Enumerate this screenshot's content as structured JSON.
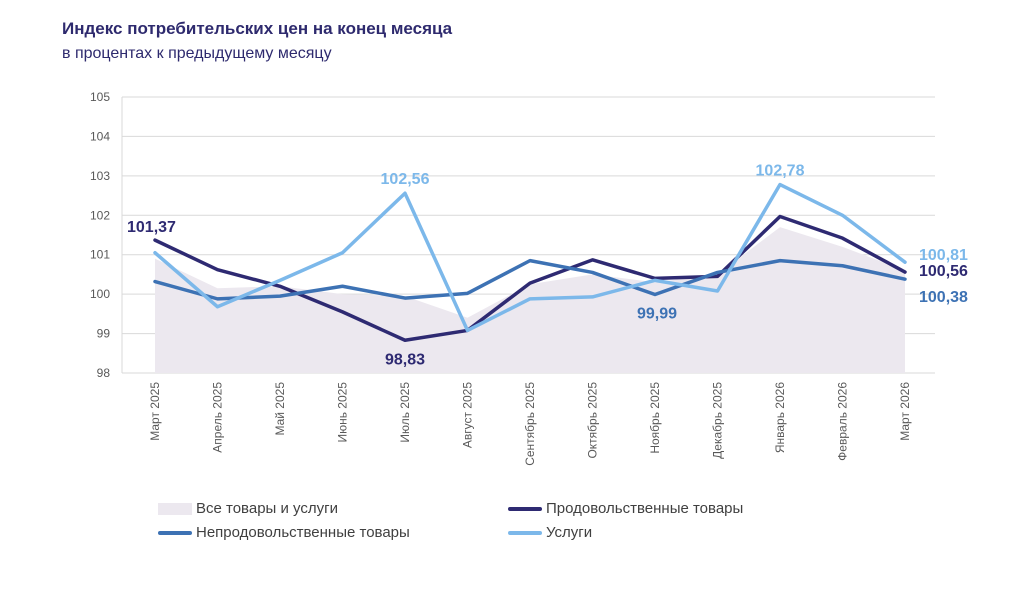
{
  "title": "Индекс потребительских цен на конец месяца",
  "subtitle": "в процентах к предыдущему месяцу",
  "chart_data": {
    "type": "line",
    "categories": [
      "Март 2025",
      "Апрель 2025",
      "Май 2025",
      "Июнь 2025",
      "Июль 2025",
      "Август 2025",
      "Сентябрь 2025",
      "Октябрь 2025",
      "Ноябрь 2025",
      "Декабрь 2025",
      "Январь 2026",
      "Февраль 2026",
      "Март 2026"
    ],
    "ylim": [
      98,
      105
    ],
    "yticks": [
      "98",
      "99",
      "100",
      "101",
      "102",
      "103",
      "104",
      "105"
    ],
    "grid": true,
    "legend_position": "bottom",
    "series": [
      {
        "name": "Все товары и услуги",
        "kind": "area",
        "color": "#ece8ef",
        "values": [
          100.9,
          100.15,
          100.2,
          100.0,
          99.95,
          99.4,
          100.25,
          100.5,
          100.3,
          100.5,
          101.7,
          101.2,
          100.6
        ]
      },
      {
        "name": "Продовольственные товары",
        "kind": "line",
        "color": "#2e2a72",
        "values": [
          101.37,
          100.62,
          100.2,
          99.55,
          98.83,
          99.08,
          100.28,
          100.87,
          100.4,
          100.45,
          101.97,
          101.42,
          100.56
        ]
      },
      {
        "name": "Непродовольственные товары",
        "kind": "line",
        "color": "#3d72b4",
        "values": [
          100.32,
          99.88,
          99.95,
          100.2,
          99.9,
          100.02,
          100.85,
          100.55,
          99.99,
          100.55,
          100.85,
          100.72,
          100.38
        ]
      },
      {
        "name": "Услуги",
        "kind": "line",
        "color": "#7cb8ea",
        "values": [
          101.05,
          99.68,
          100.35,
          101.05,
          102.56,
          99.08,
          99.88,
          99.93,
          100.35,
          100.08,
          102.78,
          102.0,
          100.81
        ]
      }
    ],
    "annotations": [
      {
        "text": "101,37",
        "series": 1,
        "index": 0
      },
      {
        "text": "98,83",
        "series": 1,
        "index": 4
      },
      {
        "text": "102,56",
        "series": 3,
        "index": 4
      },
      {
        "text": "99,99",
        "series": 2,
        "index": 8
      },
      {
        "text": "102,78",
        "series": 3,
        "index": 10
      },
      {
        "text": "100,81",
        "series": 3,
        "index": 12
      },
      {
        "text": "100,56",
        "series": 1,
        "index": 12
      },
      {
        "text": "100,38",
        "series": 2,
        "index": 12
      }
    ]
  }
}
